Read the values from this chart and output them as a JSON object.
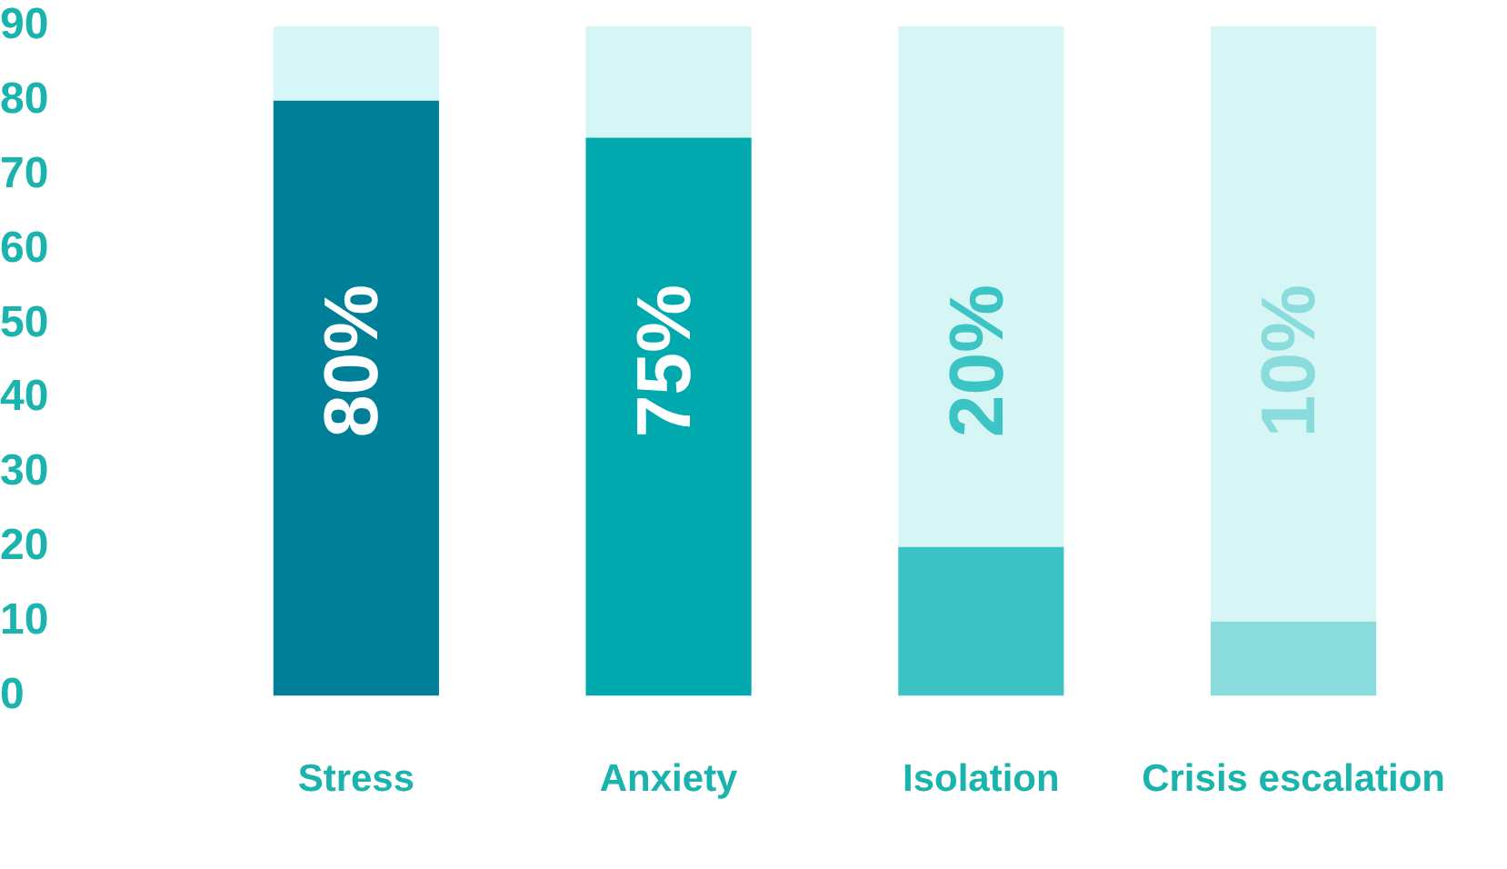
{
  "chart_data": {
    "type": "bar",
    "stacked": true,
    "categories": [
      "Stress",
      "Anxiety",
      "Isolation",
      "Crisis escalation"
    ],
    "series": [
      {
        "colors": [
          "#007f99",
          "#00a9ad",
          "#3cc4c4",
          "#8adcdc"
        ],
        "values": [
          80,
          75,
          20,
          10
        ],
        "value_labels": [
          "80%",
          "75%",
          "20%",
          "10%"
        ]
      },
      {
        "color": "#d6f5f5",
        "values": [
          10,
          15,
          70,
          80
        ]
      }
    ],
    "ylim": [
      0,
      90
    ],
    "yticks": [
      0,
      10,
      20,
      30,
      40,
      50,
      60,
      70,
      80,
      90
    ],
    "grid": false,
    "legend": false
  }
}
